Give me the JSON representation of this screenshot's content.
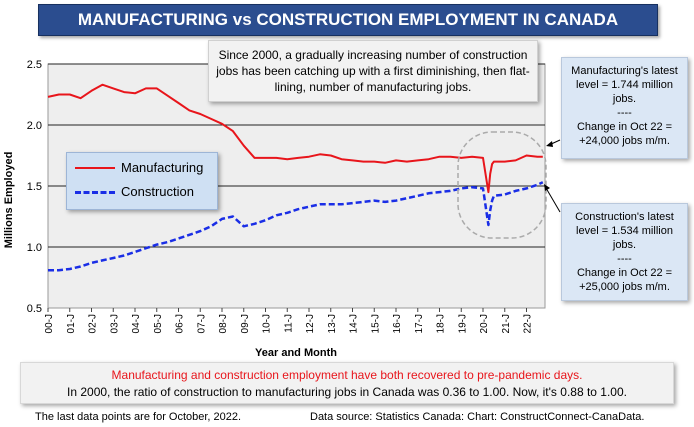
{
  "title": "MANUFACTURING vs CONSTRUCTION EMPLOYMENT IN CANADA",
  "annotation_top": "Since 2000, a gradually increasing number of construction jobs has been catching up with a first diminishing, then flat-lining, number of manufacturing jobs.",
  "annotation_manufacturing": {
    "line1": "Manufacturing's latest level = 1.744 million jobs.",
    "sep": "----",
    "line2": "Change in Oct 22 = +24,000 jobs m/m."
  },
  "annotation_construction": {
    "line1": "Construction's latest level = 1.534 million jobs.",
    "sep": "----",
    "line2": "Change in Oct 22 = +25,000 jobs m/m."
  },
  "bottom": {
    "line1": "Manufacturing and construction employment have both recovered to pre-pandemic days.",
    "line2": "In 2000, the ratio of construction to manufacturing jobs in Canada was 0.36 to 1.00. Now, it's 0.88 to 1.00."
  },
  "footer_left": "The last data points are for October, 2022.",
  "footer_right": "Data source: Statistics Canada: Chart: ConstructConnect-CanaData.",
  "colors": {
    "manufacturing": "#e8151b",
    "construction": "#1a2ee6",
    "title_bg": "#2b4d8f",
    "plot_bg": "#eeeeee"
  },
  "chart_data": {
    "type": "line",
    "ylabel": "Millions Employed",
    "xlabel": "Year and Month",
    "ylim": [
      0.5,
      2.5
    ],
    "yticks": [
      0.5,
      1.0,
      1.5,
      2.0,
      2.5
    ],
    "grid": "horizontal",
    "legend_position": "upper-left",
    "x_tick_labels": [
      "00-J",
      "01-J",
      "02-J",
      "03-J",
      "04-J",
      "05-J",
      "06-J",
      "07-J",
      "08-J",
      "09-J",
      "10-J",
      "11-J",
      "12-J",
      "13-J",
      "14-J",
      "15-J",
      "16-J",
      "17-J",
      "18-J",
      "19-J",
      "20-J",
      "21-J",
      "22-J"
    ],
    "x": [
      2000.0,
      2000.5,
      2001.0,
      2001.5,
      2002.0,
      2002.5,
      2003.0,
      2003.5,
      2004.0,
      2004.5,
      2005.0,
      2005.5,
      2006.0,
      2006.5,
      2007.0,
      2007.5,
      2008.0,
      2008.5,
      2009.0,
      2009.5,
      2010.0,
      2010.5,
      2011.0,
      2011.5,
      2012.0,
      2012.5,
      2013.0,
      2013.5,
      2014.0,
      2014.5,
      2015.0,
      2015.5,
      2016.0,
      2016.5,
      2017.0,
      2017.5,
      2018.0,
      2018.5,
      2019.0,
      2019.5,
      2020.0,
      2020.25,
      2020.33,
      2020.42,
      2020.5,
      2021.0,
      2021.5,
      2022.0,
      2022.5,
      2022.75
    ],
    "series": [
      {
        "name": "Manufacturing",
        "values": [
          2.23,
          2.25,
          2.25,
          2.22,
          2.28,
          2.33,
          2.3,
          2.27,
          2.26,
          2.3,
          2.3,
          2.24,
          2.18,
          2.12,
          2.09,
          2.05,
          2.01,
          1.95,
          1.83,
          1.73,
          1.73,
          1.73,
          1.72,
          1.73,
          1.74,
          1.76,
          1.75,
          1.72,
          1.71,
          1.7,
          1.7,
          1.69,
          1.71,
          1.7,
          1.71,
          1.72,
          1.74,
          1.74,
          1.73,
          1.74,
          1.73,
          1.45,
          1.6,
          1.68,
          1.7,
          1.7,
          1.71,
          1.75,
          1.74,
          1.74
        ]
      },
      {
        "name": "Construction",
        "values": [
          0.81,
          0.81,
          0.82,
          0.84,
          0.87,
          0.89,
          0.91,
          0.93,
          0.96,
          0.99,
          1.02,
          1.04,
          1.07,
          1.1,
          1.13,
          1.17,
          1.23,
          1.25,
          1.17,
          1.19,
          1.22,
          1.26,
          1.28,
          1.31,
          1.33,
          1.35,
          1.35,
          1.35,
          1.36,
          1.37,
          1.38,
          1.37,
          1.38,
          1.4,
          1.42,
          1.44,
          1.45,
          1.46,
          1.48,
          1.49,
          1.48,
          1.18,
          1.3,
          1.38,
          1.42,
          1.43,
          1.46,
          1.48,
          1.51,
          1.53
        ]
      }
    ]
  }
}
